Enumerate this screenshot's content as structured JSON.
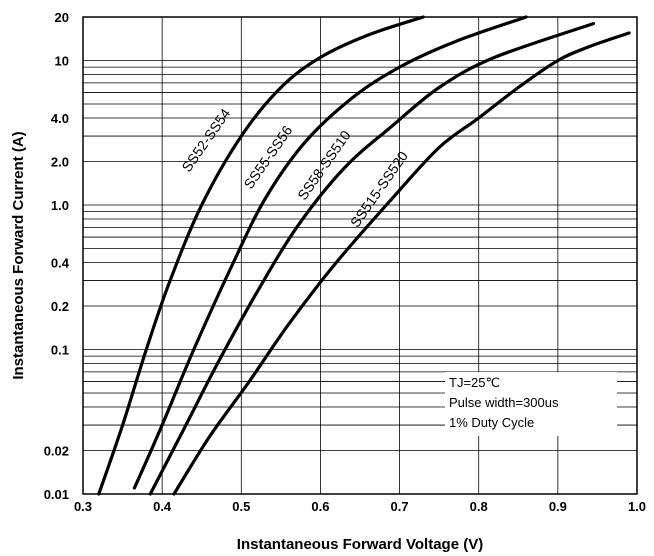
{
  "chart_data": {
    "type": "line",
    "title": "",
    "xlabel": "Instantaneous Forward Voltage (V)",
    "ylabel": "Instantaneous Forward Current (A)",
    "xlim": [
      0.3,
      1.0
    ],
    "ylim": [
      0.01,
      20
    ],
    "y_scale": "log",
    "x_ticks": [
      "0.3",
      "0.4",
      "0.5",
      "0.6",
      "0.7",
      "0.8",
      "0.9",
      "1.0"
    ],
    "y_ticks": [
      {
        "label": "20",
        "value": 20
      },
      {
        "label": "10",
        "value": 10
      },
      {
        "label": "4.0",
        "value": 4
      },
      {
        "label": "2.0",
        "value": 2
      },
      {
        "label": "1.0",
        "value": 1
      },
      {
        "label": "0.4",
        "value": 0.4
      },
      {
        "label": "0.2",
        "value": 0.2
      },
      {
        "label": "0.1",
        "value": 0.1
      },
      {
        "label": "0.02",
        "value": 0.02
      },
      {
        "label": "0.01",
        "value": 0.01
      }
    ],
    "grid": true,
    "series": [
      {
        "name": "SS52-SS54",
        "x": [
          0.32,
          0.35,
          0.38,
          0.41,
          0.45,
          0.5,
          0.55,
          0.6,
          0.66,
          0.73
        ],
        "y": [
          0.01,
          0.03,
          0.1,
          0.3,
          1.0,
          3.0,
          6.5,
          10.5,
          15,
          20
        ]
      },
      {
        "name": "SS55-SS56",
        "x": [
          0.365,
          0.4,
          0.44,
          0.49,
          0.53,
          0.58,
          0.64,
          0.7,
          0.77,
          0.86
        ],
        "y": [
          0.011,
          0.03,
          0.1,
          0.4,
          1.1,
          2.7,
          5.5,
          9.0,
          13.5,
          20
        ]
      },
      {
        "name": "SS58-SS510",
        "x": [
          0.385,
          0.43,
          0.47,
          0.52,
          0.57,
          0.63,
          0.69,
          0.75,
          0.82,
          0.945
        ],
        "y": [
          0.01,
          0.03,
          0.08,
          0.25,
          0.7,
          1.8,
          3.5,
          6.5,
          10.5,
          18
        ]
      },
      {
        "name": "SS515-SS520",
        "x": [
          0.415,
          0.46,
          0.51,
          0.56,
          0.62,
          0.69,
          0.75,
          0.8,
          0.85,
          0.9,
          0.94,
          0.99
        ],
        "y": [
          0.01,
          0.025,
          0.06,
          0.15,
          0.4,
          1.1,
          2.5,
          4.0,
          6.5,
          10,
          12.5,
          15.5
        ]
      }
    ],
    "annotations": [
      "TJ=25℃",
      "Pulse width=300us",
      "1% Duty Cycle"
    ]
  }
}
